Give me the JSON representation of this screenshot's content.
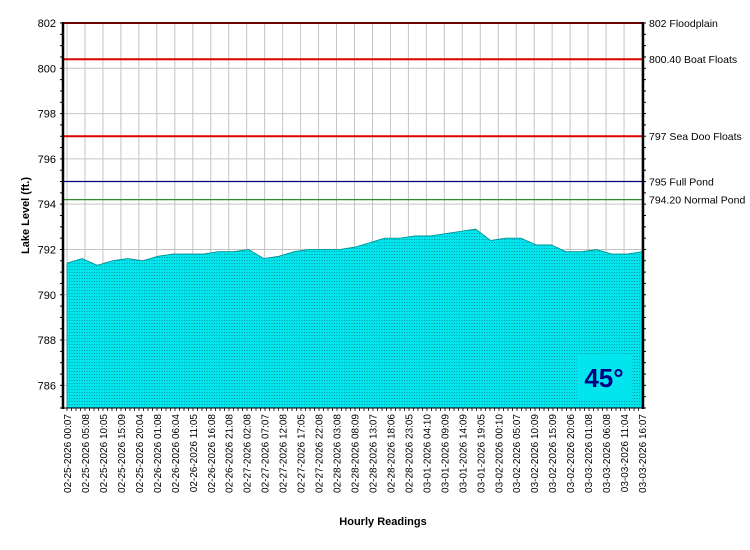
{
  "chart_data": {
    "type": "area",
    "title": "",
    "xlabel": "Hourly Readings",
    "ylabel": "Lake Level (ft.)",
    "ylim": [
      785,
      802
    ],
    "yticks": [
      786,
      788,
      790,
      792,
      794,
      796,
      798,
      800,
      802
    ],
    "grid": true,
    "fill_color": "#00e5ee",
    "x_ticks": [
      "02-25-2026 00:07",
      "02-25-2026 05:08",
      "02-25-2026 10:05",
      "02-25-2026 15:09",
      "02-25-2026 20:04",
      "02-26-2026 01:08",
      "02-26-2026 06:04",
      "02-26-2026 11:05",
      "02-26-2026 16:08",
      "02-26-2026 21:08",
      "02-27-2026 02:08",
      "02-27-2026 07:07",
      "02-27-2026 12:08",
      "02-27-2026 17:05",
      "02-27-2026 22:08",
      "02-28-2026 03:08",
      "02-28-2026 08:09",
      "02-28-2026 13:07",
      "02-28-2026 18:06",
      "02-28-2026 23:05",
      "03-01-2026 04:10",
      "03-01-2026 09:09",
      "03-01-2026 14:09",
      "03-01-2026 19:05",
      "03-02-2026 00:10",
      "03-02-2026 05:07",
      "03-02-2026 10:09",
      "03-02-2026 15:09",
      "03-02-2026 20:06",
      "03-03-2026 01:08",
      "03-03-2026 06:08",
      "03-03-2026 11:04",
      "03-03-2026 16:07"
    ],
    "series": [
      {
        "values": [
          791.4,
          791.6,
          791.3,
          791.5,
          791.6,
          791.5,
          791.7,
          791.8,
          791.8,
          791.8,
          791.9,
          791.9,
          792.0,
          791.6,
          791.7,
          791.9,
          792.0,
          792.0,
          792.0,
          792.1,
          792.3,
          792.5,
          792.5,
          792.6,
          792.6,
          792.7,
          792.8,
          792.9,
          792.4,
          792.5,
          792.5,
          792.2,
          792.2,
          791.9,
          791.9,
          792.0,
          791.8,
          791.8,
          791.9
        ]
      }
    ],
    "reference_lines": [
      {
        "value": 802,
        "label": "802 Floodplain",
        "color": "#dd0000"
      },
      {
        "value": 800.4,
        "label": "800.40 Boat Floats",
        "color": "#dd0000"
      },
      {
        "value": 797,
        "label": "797 Sea Doo Floats",
        "color": "#dd0000"
      },
      {
        "value": 795,
        "label": "795 Full Pond",
        "color": "#000080"
      },
      {
        "value": 794.2,
        "label": "794.20 Normal Pond",
        "color": "#2e8b2e"
      }
    ],
    "badge": {
      "text": "45°",
      "background": "#00e5ee",
      "color": "#000080"
    }
  }
}
